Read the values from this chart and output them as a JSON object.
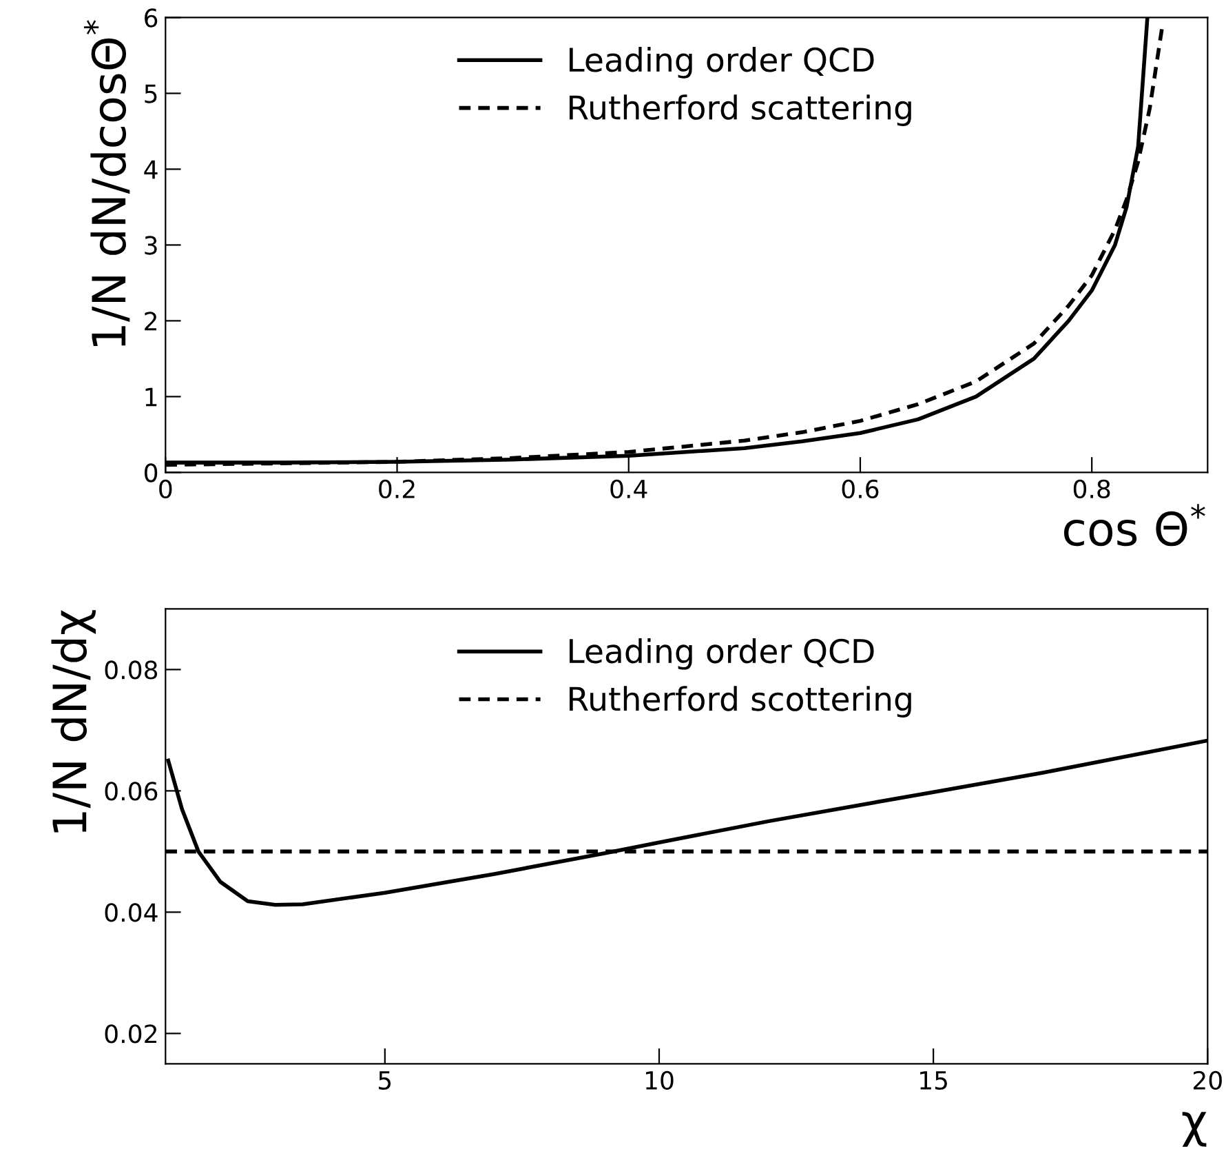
{
  "chart_data": [
    {
      "type": "line",
      "xlabel": "cos Θ$^{*}$",
      "ylabel": "1/N dN/dcosΘ$^{*}$",
      "xlim": [
        0,
        0.9
      ],
      "ylim": [
        0,
        6
      ],
      "xticks": [
        0,
        0.2,
        0.4,
        0.6,
        0.8
      ],
      "yticks": [
        0,
        1,
        2,
        3,
        4,
        5,
        6
      ],
      "grid": false,
      "legend": "top",
      "series": [
        {
          "name": "Leading order QCD",
          "color": "#000000",
          "line_style": "solid",
          "x": [
            0,
            0.1,
            0.2,
            0.3,
            0.4,
            0.5,
            0.55,
            0.6,
            0.65,
            0.7,
            0.75,
            0.78,
            0.8,
            0.82,
            0.83,
            0.84,
            0.848
          ],
          "values": [
            0.13,
            0.13,
            0.14,
            0.17,
            0.22,
            0.32,
            0.41,
            0.52,
            0.7,
            1.0,
            1.5,
            2.0,
            2.4,
            3.0,
            3.5,
            4.3,
            6.0
          ]
        },
        {
          "name": "Rutherford scattering",
          "color": "#000000",
          "line_style": "dashed",
          "x": [
            0,
            0.1,
            0.2,
            0.3,
            0.4,
            0.5,
            0.55,
            0.6,
            0.65,
            0.7,
            0.75,
            0.78,
            0.8,
            0.82,
            0.83,
            0.84,
            0.85,
            0.861
          ],
          "values": [
            0.1,
            0.12,
            0.14,
            0.19,
            0.27,
            0.42,
            0.53,
            0.68,
            0.9,
            1.2,
            1.7,
            2.2,
            2.6,
            3.2,
            3.6,
            4.1,
            4.8,
            5.9
          ]
        }
      ]
    },
    {
      "type": "line",
      "xlabel": "χ",
      "ylabel": "1/N dN/dχ",
      "xlim": [
        1,
        20
      ],
      "ylim": [
        0.015,
        0.09
      ],
      "xticks": [
        5,
        10,
        15,
        20
      ],
      "yticks": [
        0.02,
        0.04,
        0.06,
        0.08
      ],
      "grid": false,
      "legend": "top",
      "series": [
        {
          "name": "Leading order QCD",
          "color": "#000000",
          "line_style": "solid",
          "x": [
            1.05,
            1.3,
            1.6,
            2,
            2.5,
            3,
            3.5,
            5,
            7,
            9,
            10,
            12,
            15,
            17,
            20
          ],
          "values": [
            0.065,
            0.057,
            0.05,
            0.045,
            0.0418,
            0.0412,
            0.0413,
            0.0432,
            0.0463,
            0.0497,
            0.0515,
            0.055,
            0.0598,
            0.063,
            0.0683
          ]
        },
        {
          "name": "Rutherford scottering",
          "color": "#000000",
          "line_style": "dashed",
          "x": [
            1,
            20
          ],
          "values": [
            0.05,
            0.05
          ]
        }
      ]
    }
  ]
}
